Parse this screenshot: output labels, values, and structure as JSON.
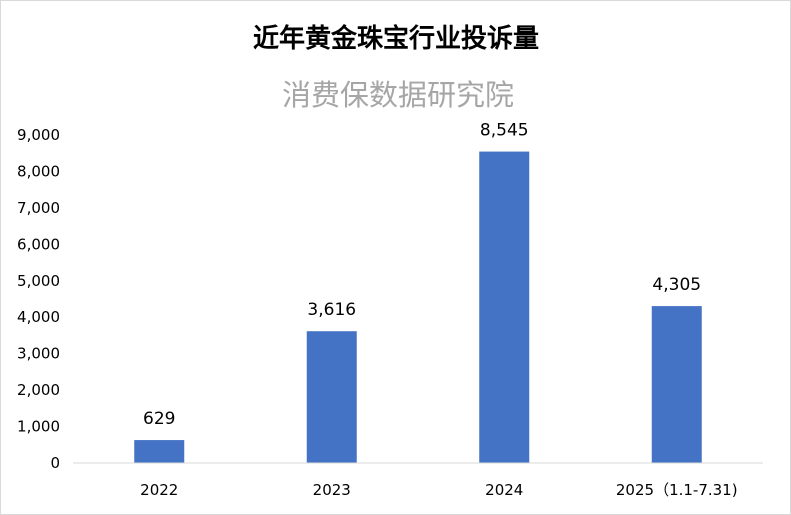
{
  "chart_data": {
    "type": "bar",
    "title": "近年黄金珠宝行业投诉量",
    "subtitle": "消费保数据研究院",
    "categories": [
      "2022",
      "2023",
      "2024",
      "2025（1.1-7.31)"
    ],
    "values": [
      629,
      3616,
      8545,
      4305
    ],
    "data_labels": [
      "629",
      "3,616",
      "8,545",
      "4,305"
    ],
    "ylim": [
      0,
      9000
    ],
    "yticks": [
      "0",
      "1,000",
      "2,000",
      "3,000",
      "4,000",
      "5,000",
      "6,000",
      "7,000",
      "8,000",
      "9,000"
    ],
    "xlabel": "",
    "ylabel": "",
    "grid": false,
    "legend": "none",
    "bar_color": "#4472c4",
    "axis_color": "#d9d9d9"
  }
}
